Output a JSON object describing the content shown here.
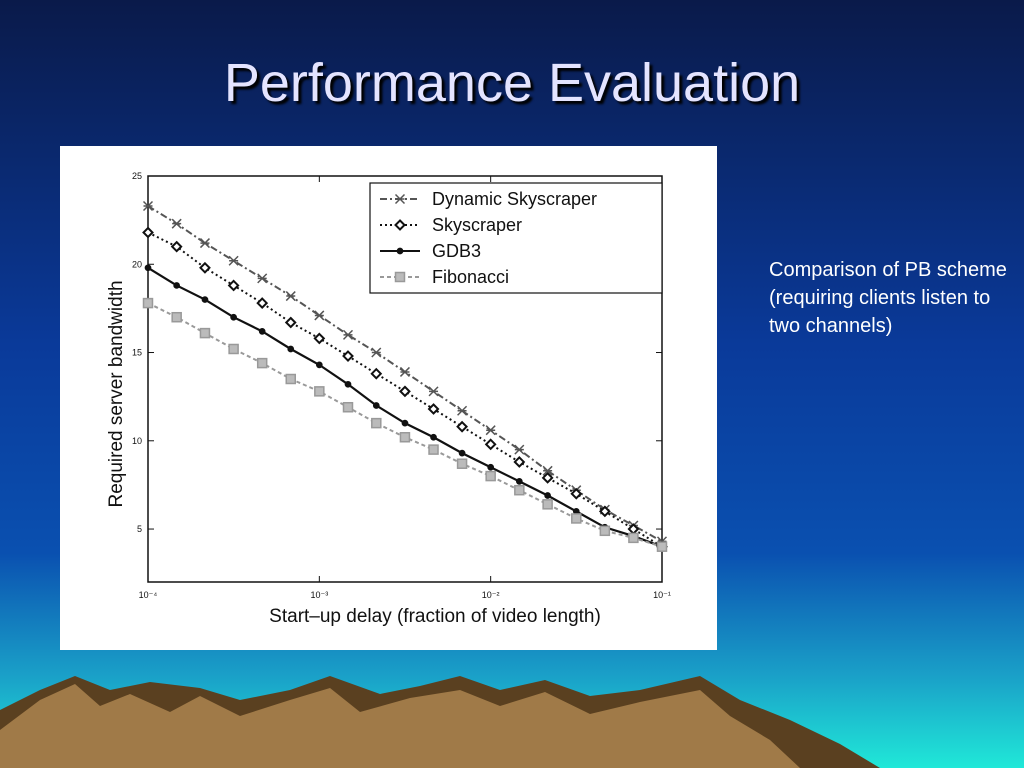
{
  "title": "Performance Evaluation",
  "note": "Comparison of PB scheme (requiring clients listen to two channels)",
  "chart_data": {
    "type": "line",
    "xlabel": "Start–up delay (fraction of video length)",
    "ylabel": "Required server bandwidth",
    "xscale": "log",
    "x": [
      0.0001,
      0.000147,
      0.000215,
      0.000316,
      0.000464,
      0.000681,
      0.001,
      0.00147,
      0.00215,
      0.00316,
      0.00464,
      0.00681,
      0.01,
      0.0147,
      0.0215,
      0.0316,
      0.0464,
      0.0681,
      0.1
    ],
    "xlim": [
      0.0001,
      0.1
    ],
    "xticks": [
      {
        "value": 0.0001,
        "label": "10⁻⁴"
      },
      {
        "value": 0.001,
        "label": "10⁻³"
      },
      {
        "value": 0.01,
        "label": "10⁻²"
      },
      {
        "value": 0.1,
        "label": "10⁻¹"
      }
    ],
    "ylim": [
      2,
      25
    ],
    "yticks": [
      5,
      10,
      15,
      20,
      25
    ],
    "legend": "upper right",
    "series": [
      {
        "name": "Dynamic Skyscraper",
        "color": "#555555",
        "dash": "7 3 2 3",
        "marker": "x",
        "values": [
          23.3,
          22.3,
          21.2,
          20.2,
          19.2,
          18.2,
          17.1,
          16,
          15,
          13.9,
          12.8,
          11.7,
          10.6,
          9.5,
          8.3,
          7.2,
          6.1,
          5.2,
          4.3
        ]
      },
      {
        "name": "Skyscraper",
        "color": "#111111",
        "dash": "2 3",
        "marker": "diamond",
        "values": [
          21.8,
          21,
          19.8,
          18.8,
          17.8,
          16.7,
          15.8,
          14.8,
          13.8,
          12.8,
          11.8,
          10.8,
          9.8,
          8.8,
          7.9,
          7,
          6,
          5,
          4
        ]
      },
      {
        "name": "GDB3",
        "color": "#111111",
        "dash": "",
        "marker": "star",
        "values": [
          19.8,
          18.8,
          18,
          17,
          16.2,
          15.2,
          14.3,
          13.2,
          12,
          11,
          10.2,
          9.3,
          8.5,
          7.7,
          6.9,
          6,
          5.1,
          4.6,
          4
        ]
      },
      {
        "name": "Fibonacci",
        "color": "#999999",
        "dash": "4 3",
        "marker": "square",
        "values": [
          17.8,
          17,
          16.1,
          15.2,
          14.4,
          13.5,
          12.8,
          11.9,
          11,
          10.2,
          9.5,
          8.7,
          8,
          7.2,
          6.4,
          5.6,
          4.9,
          4.5,
          4
        ]
      }
    ]
  }
}
